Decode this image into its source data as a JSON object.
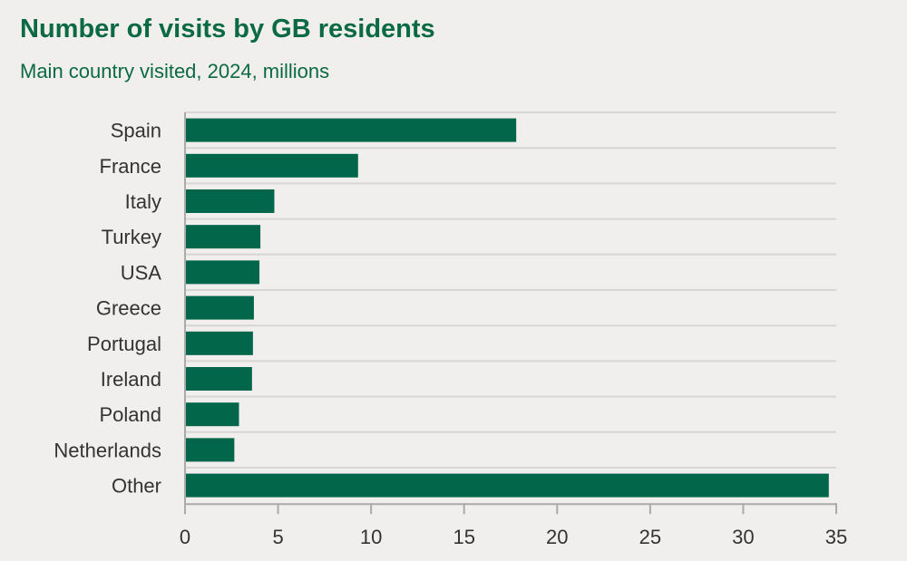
{
  "chart_data": {
    "type": "bar",
    "orientation": "horizontal",
    "title": "Number of visits by GB residents",
    "subtitle": "Main country visited, 2024, millions",
    "categories": [
      "Spain",
      "France",
      "Italy",
      "Turkey",
      "USA",
      "Greece",
      "Portugal",
      "Ireland",
      "Poland",
      "Netherlands",
      "Other"
    ],
    "values": [
      17.8,
      9.3,
      4.8,
      4.05,
      4.0,
      3.7,
      3.65,
      3.6,
      2.9,
      2.65,
      34.6
    ],
    "xlim": [
      0,
      35
    ],
    "xticks": [
      "0",
      "5",
      "10",
      "15",
      "20",
      "25",
      "30",
      "35"
    ],
    "xlabel": "",
    "ylabel": "",
    "grid": true,
    "bar_color": "#02664a"
  }
}
